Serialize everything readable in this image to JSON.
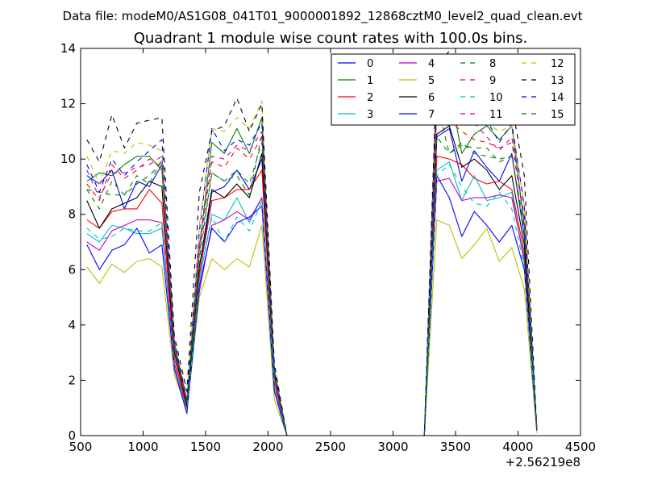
{
  "header": {
    "data_file": "Data file: modeM0/AS1G08_041T01_9000001892_12868cztM0_level2_quad_clean.evt",
    "title": "Quadrant 1 module wise count rates with 100.0s bins."
  },
  "chart_data": {
    "type": "line",
    "title": "Quadrant 1 module wise count rates with 100.0s bins.",
    "xlabel": "",
    "ylabel": "",
    "x_offset_label": "+2.56219e8",
    "xlim": [
      500,
      4500
    ],
    "ylim": [
      0,
      14
    ],
    "xticks": [
      500,
      1000,
      1500,
      2000,
      2500,
      3000,
      3500,
      4000,
      4500
    ],
    "yticks": [
      0,
      2,
      4,
      6,
      8,
      10,
      12,
      14
    ],
    "xtick_labels": [
      "500",
      "1000",
      "1500",
      "2000",
      "2500",
      "3000",
      "3500",
      "4000",
      "4500"
    ],
    "ytick_labels": [
      "0",
      "2",
      "4",
      "6",
      "8",
      "10",
      "12",
      "14"
    ],
    "grid": false,
    "legend_position": "top-right",
    "x": [
      550,
      650,
      750,
      850,
      950,
      1050,
      1150,
      1250,
      1350,
      1450,
      1550,
      1650,
      1750,
      1850,
      1950,
      2050,
      2150,
      2250,
      2350,
      2450,
      2550,
      2650,
      2750,
      2850,
      2950,
      3050,
      3150,
      3250,
      3350,
      3450,
      3550,
      3650,
      3750,
      3850,
      3950,
      4050,
      4150
    ],
    "series": [
      {
        "name": "0",
        "color": "#0000ff",
        "dash": "solid",
        "values": [
          9.4,
          9.1,
          9.6,
          8.2,
          9.2,
          9.0,
          9.8,
          3.2,
          1.1,
          5.8,
          8.8,
          9.0,
          9.6,
          8.9,
          10.0,
          2.2,
          0,
          0,
          0,
          0,
          0,
          0,
          0,
          0,
          0,
          0,
          0,
          0,
          10.8,
          11.1,
          9.2,
          10.3,
          9.7,
          9.2,
          10.2,
          7.2,
          0.2
        ]
      },
      {
        "name": "1",
        "color": "#008000",
        "dash": "solid",
        "values": [
          9.2,
          9.5,
          9.4,
          9.8,
          10.1,
          10.1,
          9.6,
          3.4,
          1.2,
          6.8,
          10.6,
          10.2,
          11.1,
          10.2,
          11.5,
          2.4,
          0,
          0,
          0,
          0,
          0,
          0,
          0,
          0,
          0,
          0,
          0,
          0,
          13.0,
          12.6,
          10.2,
          10.9,
          11.2,
          10.7,
          11.2,
          7.6,
          0.2
        ]
      },
      {
        "name": "2",
        "color": "#ff0000",
        "dash": "solid",
        "values": [
          7.8,
          7.5,
          8.1,
          8.2,
          8.2,
          8.9,
          8.4,
          2.8,
          1.0,
          5.8,
          8.5,
          8.6,
          8.9,
          8.9,
          9.6,
          2.0,
          0,
          0,
          0,
          0,
          0,
          0,
          0,
          0,
          0,
          0,
          0,
          0,
          10.1,
          10.0,
          9.8,
          9.3,
          9.1,
          9.2,
          8.9,
          6.6,
          0.2
        ]
      },
      {
        "name": "3",
        "color": "#00bfbf",
        "dash": "solid",
        "values": [
          7.3,
          7.0,
          7.6,
          7.5,
          7.3,
          7.3,
          7.5,
          2.6,
          0.9,
          5.6,
          8.0,
          7.8,
          8.6,
          7.7,
          8.6,
          1.8,
          0,
          0,
          0,
          0,
          0,
          0,
          0,
          0,
          0,
          0,
          0,
          0,
          9.6,
          9.9,
          8.5,
          9.4,
          8.5,
          8.6,
          8.8,
          6.2,
          0.2
        ]
      },
      {
        "name": "4",
        "color": "#bf00bf",
        "dash": "solid",
        "values": [
          7.0,
          6.7,
          7.4,
          7.6,
          7.8,
          7.8,
          7.7,
          2.6,
          0.9,
          5.2,
          7.6,
          7.8,
          8.1,
          7.8,
          8.6,
          1.8,
          0,
          0,
          0,
          0,
          0,
          0,
          0,
          0,
          0,
          0,
          0,
          0,
          9.2,
          9.3,
          8.5,
          8.6,
          8.6,
          8.7,
          8.6,
          6.4,
          0.2
        ]
      },
      {
        "name": "5",
        "color": "#bfbf00",
        "dash": "solid",
        "values": [
          6.1,
          5.5,
          6.2,
          5.9,
          6.3,
          6.4,
          6.1,
          2.2,
          0.9,
          5.0,
          6.4,
          6.0,
          6.4,
          6.1,
          7.6,
          1.3,
          0,
          0,
          0,
          0,
          0,
          0,
          0,
          0,
          0,
          0,
          0,
          0,
          7.8,
          7.6,
          6.4,
          6.9,
          7.5,
          6.3,
          6.8,
          5.3,
          0.1
        ]
      },
      {
        "name": "6",
        "color": "#000000",
        "dash": "solid",
        "values": [
          8.5,
          7.5,
          8.2,
          8.4,
          8.6,
          9.2,
          9.0,
          3.0,
          1.1,
          6.1,
          8.9,
          8.6,
          9.1,
          8.6,
          10.2,
          2.2,
          0,
          0,
          0,
          0,
          0,
          0,
          0,
          0,
          0,
          0,
          0,
          0,
          10.9,
          11.2,
          9.7,
          10.0,
          9.6,
          8.9,
          9.4,
          6.9,
          0.2
        ]
      },
      {
        "name": "7",
        "color": "#0000ff",
        "dash": "solid",
        "values": [
          6.9,
          6.0,
          6.7,
          6.9,
          7.5,
          6.6,
          6.9,
          2.4,
          0.8,
          5.4,
          7.5,
          7.0,
          7.7,
          7.9,
          8.3,
          1.6,
          0,
          0,
          0,
          0,
          0,
          0,
          0,
          0,
          0,
          0,
          0,
          0,
          9.4,
          8.6,
          7.2,
          8.1,
          7.6,
          7.0,
          7.6,
          6.0,
          0.2
        ]
      },
      {
        "name": "8",
        "color": "#008000",
        "dash": "dashed",
        "values": [
          8.9,
          8.8,
          8.7,
          8.7,
          9.4,
          9.1,
          10.0,
          3.1,
          1.2,
          6.6,
          9.5,
          9.2,
          9.4,
          8.7,
          10.9,
          2.3,
          0,
          0,
          0,
          0,
          0,
          0,
          0,
          0,
          0,
          0,
          0,
          0,
          12.0,
          10.2,
          10.6,
          10.2,
          10.1,
          10.0,
          10.1,
          7.4,
          0.2
        ]
      },
      {
        "name": "9",
        "color": "#ff0000",
        "dash": "dashed",
        "values": [
          9.1,
          8.5,
          9.8,
          9.3,
          9.6,
          10.0,
          9.7,
          3.2,
          1.2,
          6.8,
          9.9,
          9.7,
          10.4,
          10.0,
          10.8,
          2.3,
          0,
          0,
          0,
          0,
          0,
          0,
          0,
          0,
          0,
          0,
          0,
          0,
          11.8,
          11.4,
          11.0,
          10.7,
          10.6,
          10.4,
          10.6,
          7.8,
          0.2
        ]
      },
      {
        "name": "10",
        "color": "#00bfbf",
        "dash": "dashed",
        "values": [
          7.5,
          7.1,
          7.2,
          7.5,
          7.4,
          7.4,
          7.7,
          2.5,
          0.9,
          5.6,
          7.9,
          7.0,
          7.9,
          7.4,
          8.5,
          1.8,
          0,
          0,
          0,
          0,
          0,
          0,
          0,
          0,
          0,
          0,
          0,
          0,
          9.4,
          9.8,
          9.0,
          8.4,
          8.3,
          8.8,
          8.2,
          6.1,
          0.2
        ]
      },
      {
        "name": "11",
        "color": "#bf00bf",
        "dash": "dashed",
        "values": [
          9.6,
          8.6,
          9.5,
          9.5,
          9.7,
          9.8,
          10.1,
          3.3,
          1.3,
          6.9,
          10.1,
          10.0,
          10.5,
          10.3,
          11.0,
          2.4,
          0,
          0,
          0,
          0,
          0,
          0,
          0,
          0,
          0,
          0,
          0,
          0,
          11.9,
          11.9,
          11.2,
          11.3,
          10.8,
          10.3,
          10.8,
          7.9,
          0.2
        ]
      },
      {
        "name": "12",
        "color": "#bfbf00",
        "dash": "dashed",
        "values": [
          10.1,
          9.1,
          10.3,
          10.2,
          10.6,
          10.5,
          10.3,
          3.4,
          1.4,
          7.6,
          11.1,
          11.0,
          11.5,
          11.1,
          12.1,
          2.5,
          0,
          0,
          0,
          0,
          0,
          0,
          0,
          0,
          0,
          0,
          0,
          0,
          13.5,
          12.8,
          11.3,
          11.2,
          11.3,
          11.0,
          11.2,
          8.3,
          0.2
        ]
      },
      {
        "name": "13",
        "color": "#000000",
        "dash": "dashed",
        "values": [
          10.7,
          9.9,
          11.6,
          10.4,
          11.3,
          11.4,
          11.5,
          3.6,
          1.6,
          8.8,
          11.0,
          11.2,
          12.2,
          11.0,
          12.0,
          2.6,
          0,
          0,
          0,
          0,
          0,
          0,
          0,
          0,
          0,
          0,
          0,
          0,
          13.4,
          13.9,
          11.8,
          12.4,
          11.9,
          11.4,
          12.0,
          9.4,
          0.3
        ]
      },
      {
        "name": "14",
        "color": "#0000ff",
        "dash": "dashed",
        "values": [
          9.8,
          8.8,
          10.0,
          9.4,
          9.9,
          10.3,
          10.7,
          3.4,
          1.3,
          7.4,
          11.1,
          10.3,
          10.7,
          10.5,
          11.3,
          2.4,
          0,
          0,
          0,
          0,
          0,
          0,
          0,
          0,
          0,
          0,
          0,
          0,
          12.7,
          11.9,
          11.3,
          11.5,
          11.4,
          10.6,
          11.3,
          8.3,
          0.2
        ]
      },
      {
        "name": "15",
        "color": "#008000",
        "dash": "dashed",
        "values": [
          8.9,
          8.2,
          9.2,
          8.7,
          9.1,
          9.4,
          9.9,
          3.2,
          1.2,
          6.4,
          9.5,
          9.2,
          9.6,
          9.1,
          10.6,
          2.2,
          0,
          0,
          0,
          0,
          0,
          0,
          0,
          0,
          0,
          0,
          0,
          0,
          10.8,
          10.2,
          10.5,
          10.4,
          10.4,
          9.9,
          10.1,
          7.6,
          0.2
        ]
      }
    ]
  }
}
